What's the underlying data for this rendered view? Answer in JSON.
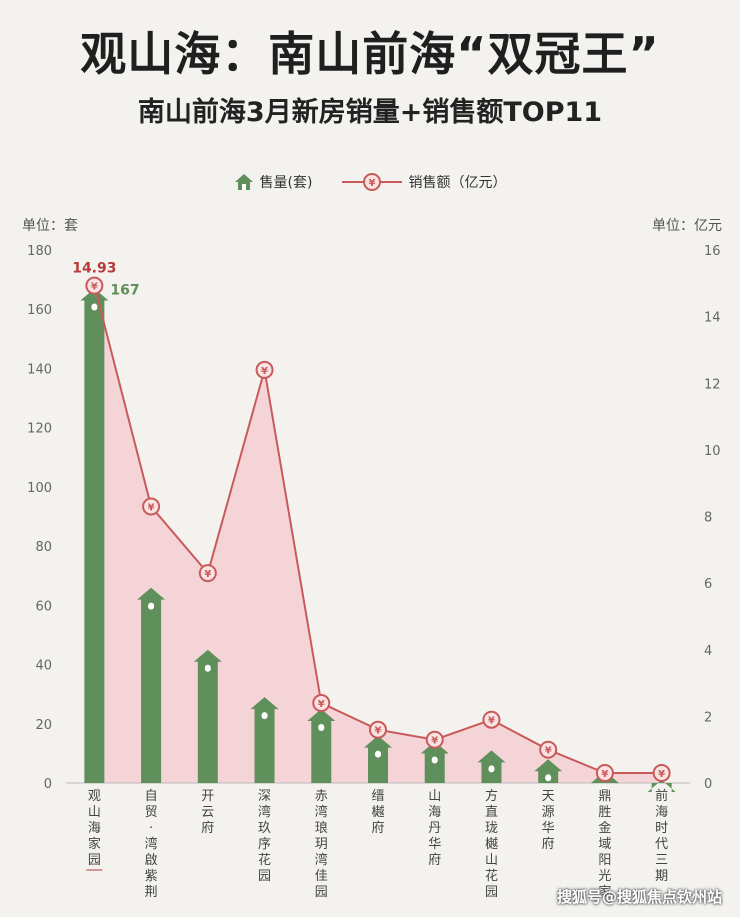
{
  "header": {
    "title": "观山海：南山前海“双冠王”",
    "subtitle": "南山前海3月新房销量+销售额TOP11"
  },
  "legend": {
    "sales_units_label": "售量(套)",
    "sales_amount_label": "销售额（亿元）"
  },
  "axes": {
    "left_unit": "单位：套",
    "right_unit": "单位：亿元"
  },
  "watermark": "搜狐号@搜狐焦点钦州站",
  "colors": {
    "bar": "#5f8f5a",
    "line": "#c95a5a",
    "highlight_label": "#b63a3a",
    "area": "#f6c9cf"
  },
  "chart_data": {
    "type": "bar",
    "categories": [
      "观山海家园",
      "自贸·湾啟紫荆",
      "开云府",
      "深湾玖序花园",
      "赤湾琅玥湾佳园",
      "缙樾府",
      "山海丹华府",
      "方直珑樾山花园",
      "天源华府",
      "鼎胜金域阳光家",
      "前海时代三期"
    ],
    "series": [
      {
        "name": "售量(套)",
        "axis": "left",
        "values": [
          167,
          66,
          45,
          29,
          25,
          16,
          14,
          11,
          8,
          4,
          1
        ]
      },
      {
        "name": "销售额（亿元）",
        "axis": "right",
        "type": "line",
        "values": [
          14.93,
          8.3,
          6.3,
          12.4,
          2.4,
          1.6,
          1.3,
          1.9,
          1.0,
          0.3,
          0.3
        ]
      }
    ],
    "data_labels": {
      "first_units": "167",
      "first_amount": "14.93"
    },
    "ylim_left": [
      0,
      180
    ],
    "yticks_left": [
      0,
      20,
      40,
      60,
      80,
      100,
      120,
      140,
      160,
      180
    ],
    "ylim_right": [
      0,
      16
    ],
    "yticks_right": [
      0,
      2,
      4,
      6,
      8,
      10,
      12,
      14,
      16
    ],
    "grid": false,
    "legend_position": "top-center"
  }
}
